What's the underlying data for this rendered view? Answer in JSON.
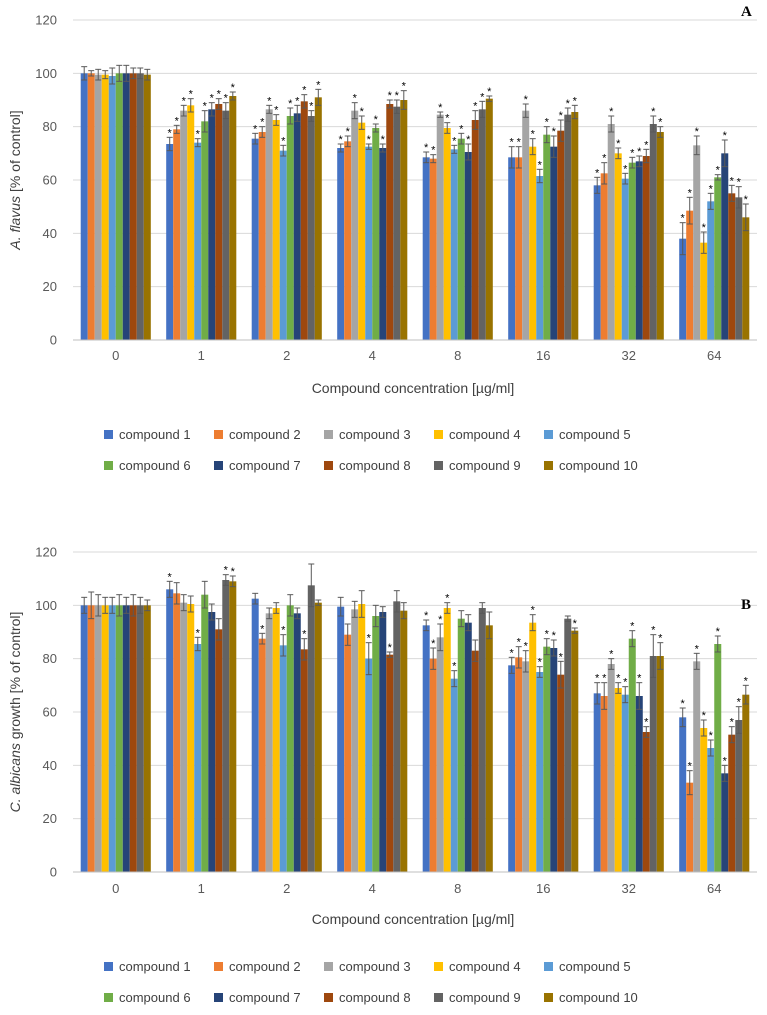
{
  "colors": [
    "#4472C4",
    "#ED7D31",
    "#A5A5A5",
    "#FFC000",
    "#5B9BD5",
    "#70AD47",
    "#264478",
    "#9E480E",
    "#636363",
    "#997300"
  ],
  "chart_data": [
    {
      "type": "bar",
      "panel_label": "A",
      "title": "",
      "xlabel": "Compound concentration [µg/ml]",
      "ylabel_italic": "A. flavus",
      "ylabel_rest": " [% of control]",
      "ylim": [
        0,
        120
      ],
      "ytick_step": 20,
      "categories": [
        "0",
        "1",
        "2",
        "4",
        "8",
        "16",
        "32",
        "64"
      ],
      "series": [
        {
          "name": "compound 1",
          "values": [
            100,
            73.5,
            75.5,
            72,
            68.5,
            68.5,
            58,
            38
          ],
          "errors": [
            2.5,
            2.5,
            2,
            1.5,
            2,
            4,
            3,
            6
          ],
          "sig": [
            false,
            true,
            true,
            true,
            true,
            true,
            true,
            true
          ]
        },
        {
          "name": "compound 2",
          "values": [
            100,
            79,
            78,
            74.5,
            68,
            68.5,
            62.5,
            48.5
          ],
          "errors": [
            1,
            1.5,
            2,
            2,
            1.5,
            4,
            4,
            5
          ],
          "sig": [
            false,
            true,
            true,
            true,
            true,
            true,
            true,
            true
          ]
        },
        {
          "name": "compound 3",
          "values": [
            99.5,
            86,
            86.5,
            86,
            84.5,
            86,
            81,
            73
          ],
          "errors": [
            2,
            2,
            1.5,
            3,
            1,
            2.5,
            3,
            3.5
          ],
          "sig": [
            false,
            true,
            true,
            true,
            true,
            true,
            true,
            true
          ]
        },
        {
          "name": "compound 4",
          "values": [
            99.5,
            88,
            82.5,
            81.5,
            79.5,
            72.5,
            70,
            36.5
          ],
          "errors": [
            1.5,
            2.5,
            2,
            2.5,
            2,
            3,
            2,
            4
          ],
          "sig": [
            false,
            true,
            true,
            true,
            true,
            true,
            true,
            true
          ]
        },
        {
          "name": "compound 5",
          "values": [
            99,
            74,
            71,
            72.5,
            71.5,
            61.5,
            60.5,
            52
          ],
          "errors": [
            3,
            1.5,
            2,
            1,
            1.5,
            2.5,
            2,
            3
          ],
          "sig": [
            false,
            true,
            true,
            true,
            true,
            true,
            true,
            true
          ]
        },
        {
          "name": "compound 6",
          "values": [
            100,
            82,
            84,
            79.5,
            75.5,
            77,
            66.5,
            61
          ],
          "errors": [
            3,
            4,
            3,
            1.5,
            2,
            3,
            2,
            1
          ],
          "sig": [
            false,
            true,
            true,
            true,
            true,
            true,
            true,
            true
          ]
        },
        {
          "name": "compound 7",
          "values": [
            100,
            86.5,
            85,
            72,
            70.5,
            72.5,
            67,
            70
          ],
          "errors": [
            3,
            2.5,
            3,
            1.5,
            3,
            4,
            2,
            5
          ],
          "sig": [
            false,
            true,
            true,
            true,
            true,
            true,
            true,
            true
          ]
        },
        {
          "name": "compound 8",
          "values": [
            100,
            88.5,
            89.5,
            88.5,
            82.5,
            78.5,
            69,
            55
          ],
          "errors": [
            2,
            2,
            2.5,
            1.5,
            3.5,
            4,
            2.5,
            3
          ],
          "sig": [
            false,
            true,
            true,
            true,
            true,
            true,
            true,
            true
          ]
        },
        {
          "name": "compound 9",
          "values": [
            100,
            86,
            84,
            87.5,
            86.5,
            84.5,
            81,
            53.5
          ],
          "errors": [
            2,
            3,
            2,
            2.5,
            3,
            2.5,
            3,
            4
          ],
          "sig": [
            false,
            true,
            true,
            true,
            true,
            true,
            true,
            true
          ]
        },
        {
          "name": "compound 10",
          "values": [
            99.5,
            91.5,
            91,
            90,
            90.5,
            85.5,
            78,
            46
          ],
          "errors": [
            2,
            1.5,
            3,
            3.5,
            1,
            2.5,
            2,
            5
          ],
          "sig": [
            false,
            true,
            true,
            true,
            true,
            true,
            true,
            true
          ]
        }
      ]
    },
    {
      "type": "bar",
      "panel_label": "B",
      "title": "",
      "xlabel": "Compound concentration [µg/ml]",
      "ylabel_italic": "C. albicans",
      "ylabel_rest": " growth [% of control]",
      "ylim": [
        0,
        120
      ],
      "ytick_step": 20,
      "categories": [
        "0",
        "1",
        "2",
        "4",
        "8",
        "16",
        "32",
        "64"
      ],
      "series": [
        {
          "name": "compound 1",
          "values": [
            100,
            106,
            102.5,
            99.5,
            92.5,
            77.5,
            67,
            58
          ],
          "errors": [
            3,
            3,
            2,
            3.5,
            2,
            3,
            4,
            3.5
          ],
          "sig": [
            false,
            true,
            false,
            false,
            true,
            true,
            true,
            true
          ]
        },
        {
          "name": "compound 2",
          "values": [
            100,
            104.5,
            87.5,
            89,
            80,
            80.5,
            66,
            33.5
          ],
          "errors": [
            5,
            4,
            2,
            4,
            4,
            4,
            5,
            4.5
          ],
          "sig": [
            false,
            false,
            true,
            false,
            true,
            true,
            true,
            true
          ]
        },
        {
          "name": "compound 3",
          "values": [
            100,
            101,
            97,
            98.5,
            88,
            79,
            78,
            79
          ],
          "errors": [
            4,
            3,
            2,
            3,
            5,
            4,
            2,
            3
          ],
          "sig": [
            false,
            false,
            false,
            false,
            true,
            true,
            true,
            true
          ]
        },
        {
          "name": "compound 4",
          "values": [
            100,
            100.5,
            99,
            100.5,
            99,
            93.5,
            69,
            54
          ],
          "errors": [
            3,
            3,
            2,
            5,
            2,
            3,
            2,
            3
          ],
          "sig": [
            false,
            false,
            false,
            false,
            true,
            true,
            true,
            true
          ]
        },
        {
          "name": "compound 5",
          "values": [
            100,
            85.5,
            85,
            80,
            72.5,
            75,
            66.5,
            46.5
          ],
          "errors": [
            3,
            2.5,
            4,
            6,
            3,
            2,
            3,
            3
          ],
          "sig": [
            false,
            true,
            true,
            true,
            true,
            true,
            true,
            true
          ]
        },
        {
          "name": "compound 6",
          "values": [
            100,
            104,
            100,
            96,
            95,
            84.5,
            87.5,
            85.5
          ],
          "errors": [
            4,
            5,
            4,
            4,
            3,
            3,
            3,
            3
          ],
          "sig": [
            false,
            false,
            false,
            false,
            false,
            true,
            true,
            true
          ]
        },
        {
          "name": "compound 7",
          "values": [
            100,
            97.5,
            97,
            97.5,
            93.5,
            84,
            66,
            37
          ],
          "errors": [
            3,
            3,
            2,
            2,
            3,
            3,
            5,
            3
          ],
          "sig": [
            false,
            false,
            false,
            false,
            false,
            true,
            true,
            true
          ]
        },
        {
          "name": "compound 8",
          "values": [
            100,
            91,
            83.5,
            81.5,
            83,
            74,
            52.5,
            51.5
          ],
          "errors": [
            4,
            4,
            4,
            1,
            4,
            5,
            2,
            3
          ],
          "sig": [
            false,
            false,
            true,
            true,
            false,
            true,
            true,
            true
          ]
        },
        {
          "name": "compound 9",
          "values": [
            100,
            109.5,
            107.5,
            101.5,
            99,
            95,
            81,
            57
          ],
          "errors": [
            3,
            2,
            8,
            4,
            2,
            1,
            8,
            5
          ],
          "sig": [
            false,
            true,
            false,
            false,
            false,
            false,
            true,
            true
          ]
        },
        {
          "name": "compound 10",
          "values": [
            100,
            109,
            101,
            98,
            92.5,
            90.5,
            81,
            66.5
          ],
          "errors": [
            2,
            2,
            1,
            3,
            5,
            1,
            5,
            3.5
          ],
          "sig": [
            false,
            true,
            false,
            false,
            false,
            true,
            true,
            true
          ]
        }
      ]
    }
  ]
}
